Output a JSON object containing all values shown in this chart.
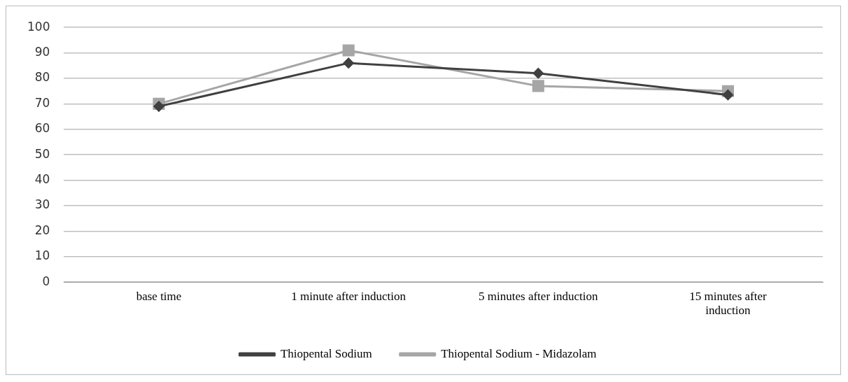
{
  "chart_data": {
    "type": "line",
    "categories": [
      "base time",
      "1 minute after induction",
      "5 minutes after induction",
      "15 minutes after induction"
    ],
    "series": [
      {
        "name": "Thiopental Sodium",
        "color": "#404040",
        "values": [
          69,
          86,
          82,
          73.5
        ],
        "marker": "diamond"
      },
      {
        "name": "Thiopental Sodium - Midazolam",
        "color": "#a6a6a6",
        "values": [
          70,
          91,
          77,
          75
        ],
        "marker": "square"
      }
    ],
    "ylim": [
      0,
      100
    ],
    "yticks": [
      0,
      10,
      20,
      30,
      40,
      50,
      60,
      70,
      80,
      90,
      100
    ],
    "grid": "y",
    "legend": "bottom"
  }
}
